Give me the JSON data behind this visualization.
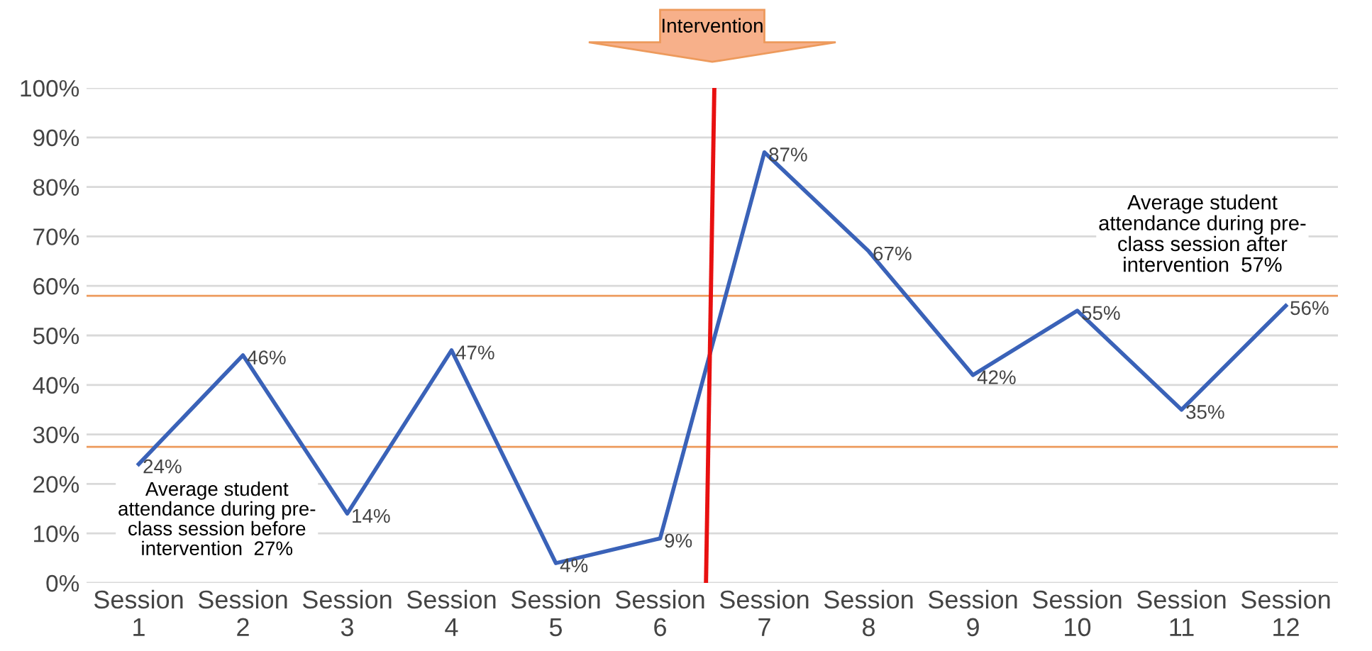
{
  "chart_data": {
    "type": "line",
    "categories": [
      "Session\n1",
      "Session\n2",
      "Session\n3",
      "Session\n4",
      "Session\n5",
      "Session\n6",
      "Session\n7",
      "Session\n8",
      "Session\n9",
      "Session\n10",
      "Session\n11",
      "Session\n12"
    ],
    "series": [
      {
        "color": "#3a62b8",
        "values": [
          24,
          46,
          14,
          47,
          4,
          9,
          87,
          67,
          42,
          55,
          35,
          56
        ],
        "value_labels": [
          "24%",
          "46%",
          "14%",
          "47%",
          "4%",
          "9%",
          "87%",
          "67%",
          "42%",
          "55%",
          "35%",
          "56%"
        ]
      }
    ],
    "ylim": [
      0,
      100
    ],
    "yticks": [
      {
        "value": 0,
        "label": "0%"
      },
      {
        "value": 10,
        "label": "10%"
      },
      {
        "value": 20,
        "label": "20%"
      },
      {
        "value": 30,
        "label": "30%"
      },
      {
        "value": 40,
        "label": "40%"
      },
      {
        "value": 50,
        "label": "50%"
      },
      {
        "value": 60,
        "label": "60%"
      },
      {
        "value": 70,
        "label": "70%"
      },
      {
        "value": 80,
        "label": "80%"
      },
      {
        "value": 90,
        "label": "90%"
      },
      {
        "value": 100,
        "label": "100%"
      }
    ],
    "annotations": [
      "Intervention"
    ],
    "ref_lines": [
      {
        "axis": "y",
        "value": 27.5,
        "label": "Average student\nattendance during pre-\nclass session before\nintervention  27%",
        "color": "#ed9a5c"
      },
      {
        "axis": "y",
        "value": 58,
        "label": "Average student\nattendance during pre-\nclass session after\nintervention  57%",
        "color": "#ed9a5c"
      }
    ],
    "grid": "y",
    "legend": false
  }
}
